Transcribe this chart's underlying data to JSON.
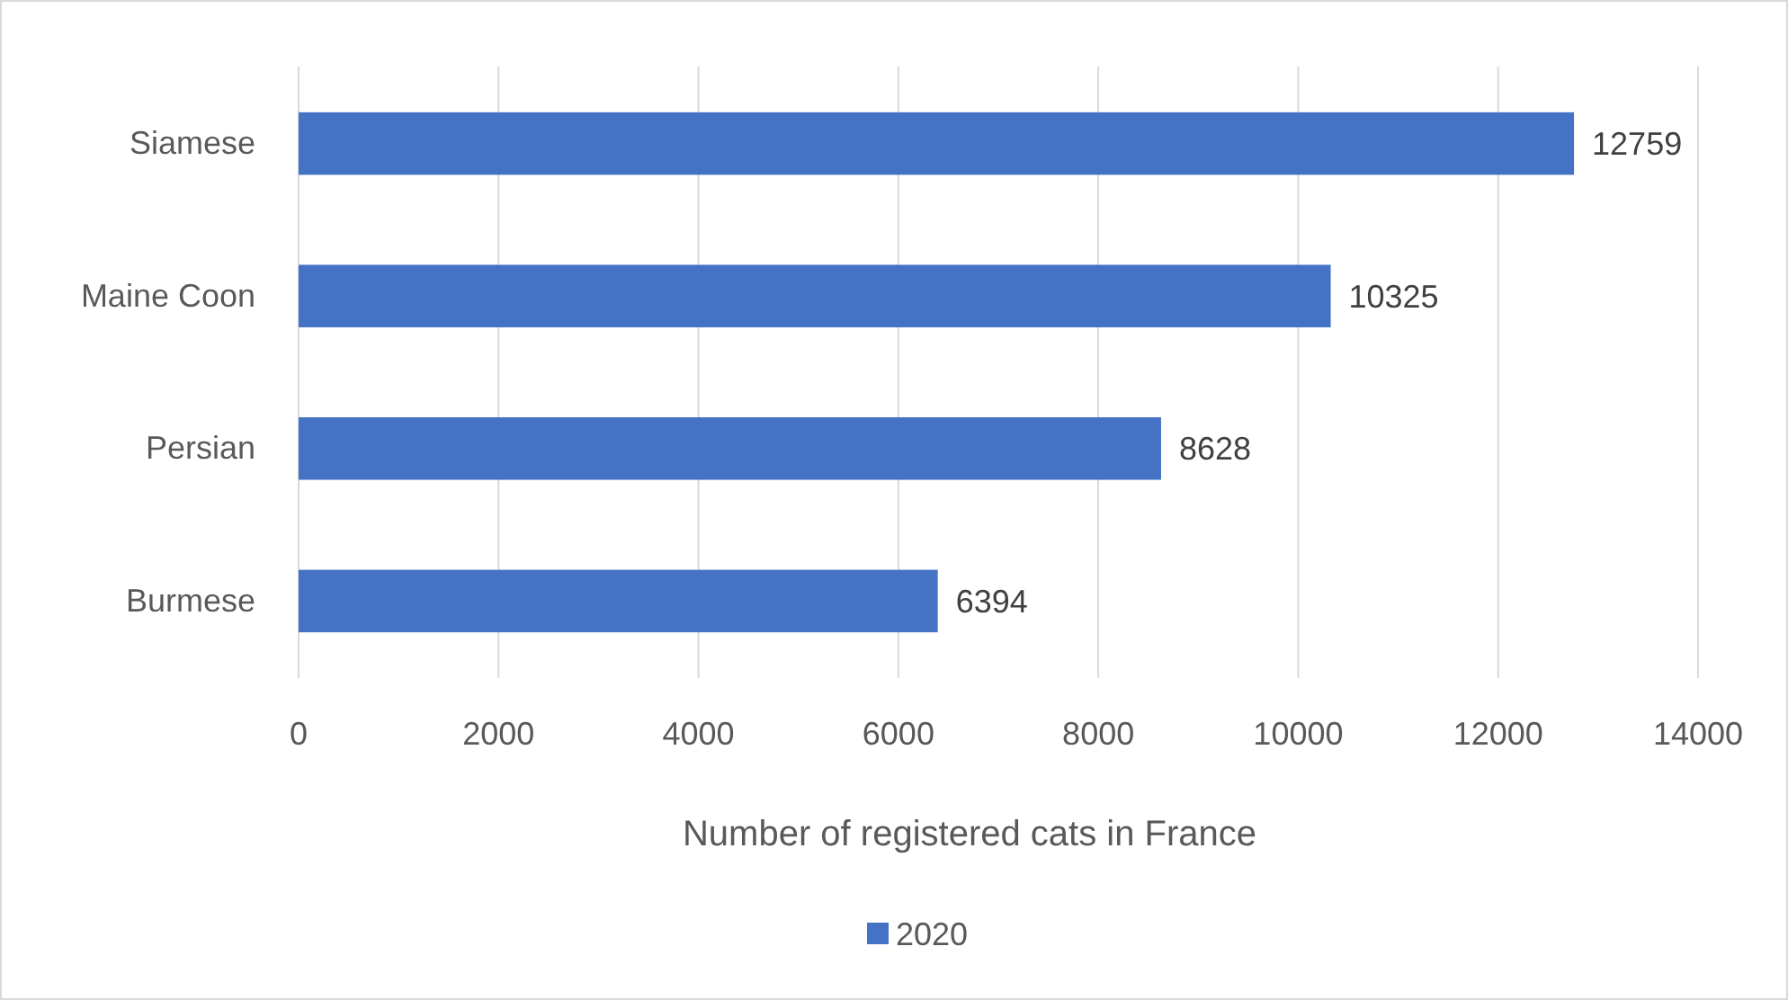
{
  "chart_data": {
    "type": "bar",
    "orientation": "horizontal",
    "xlabel": "Number of registered cats in France",
    "categories": [
      "Siamese",
      "Maine Coon",
      "Persian",
      "Burmese"
    ],
    "series": [
      {
        "name": "2020",
        "color": "#4472c4",
        "values": [
          12759,
          10325,
          8628,
          6394
        ]
      }
    ],
    "xlim": [
      0,
      14000
    ],
    "xticks": [
      0,
      2000,
      4000,
      6000,
      8000,
      10000,
      12000,
      14000
    ],
    "grid": "x",
    "legend": "bottom",
    "data_labels": true
  }
}
